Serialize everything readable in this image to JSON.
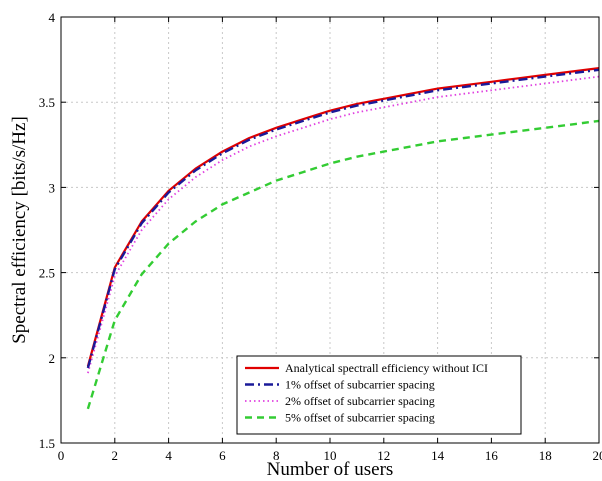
{
  "chart_data": {
    "type": "line",
    "xlabel": "Number of users",
    "ylabel": "Spectral efficiency  [bits/s/Hz]",
    "xlim": [
      0,
      20
    ],
    "ylim": [
      1.5,
      4
    ],
    "xticks": [
      0,
      2,
      4,
      6,
      8,
      10,
      12,
      14,
      16,
      18,
      20
    ],
    "xtick_labels": [
      "0",
      "2",
      "4",
      "6",
      "8",
      "10",
      "12",
      "14",
      "16",
      "18",
      "20"
    ],
    "yticks": [
      1.5,
      2,
      2.5,
      3,
      3.5,
      4
    ],
    "ytick_labels": [
      "1.5",
      "2",
      "2.5",
      "3",
      "3.5",
      "4"
    ],
    "grid": true,
    "legend_position": "bottom-right",
    "x": [
      1,
      2,
      3,
      4,
      5,
      6,
      7,
      8,
      9,
      10,
      11,
      12,
      13,
      14,
      15,
      16,
      17,
      18,
      19,
      20
    ],
    "series": [
      {
        "name": "Analytical spectrall efficiency without ICI",
        "color": "#e00000",
        "style": "solid",
        "values": [
          1.95,
          2.53,
          2.8,
          2.98,
          3.11,
          3.21,
          3.29,
          3.35,
          3.4,
          3.45,
          3.49,
          3.52,
          3.55,
          3.58,
          3.6,
          3.62,
          3.64,
          3.66,
          3.68,
          3.7
        ]
      },
      {
        "name": "1% offset of subcarrier spacing",
        "color": "#1a1a99",
        "style": "dashdot",
        "values": [
          1.94,
          2.52,
          2.79,
          2.97,
          3.1,
          3.2,
          3.28,
          3.34,
          3.39,
          3.44,
          3.48,
          3.51,
          3.54,
          3.57,
          3.59,
          3.61,
          3.63,
          3.65,
          3.67,
          3.69
        ]
      },
      {
        "name": "2% offset of subcarrier spacing",
        "color": "#e040e0",
        "style": "dotted",
        "values": [
          1.91,
          2.48,
          2.75,
          2.93,
          3.06,
          3.16,
          3.24,
          3.3,
          3.35,
          3.4,
          3.44,
          3.47,
          3.5,
          3.53,
          3.55,
          3.57,
          3.59,
          3.61,
          3.63,
          3.65
        ]
      },
      {
        "name": "5% offset of subcarrier spacing",
        "color": "#33cc33",
        "style": "dashed",
        "values": [
          1.7,
          2.22,
          2.49,
          2.67,
          2.8,
          2.9,
          2.97,
          3.04,
          3.09,
          3.14,
          3.18,
          3.21,
          3.24,
          3.27,
          3.29,
          3.31,
          3.33,
          3.35,
          3.37,
          3.39
        ]
      }
    ]
  }
}
